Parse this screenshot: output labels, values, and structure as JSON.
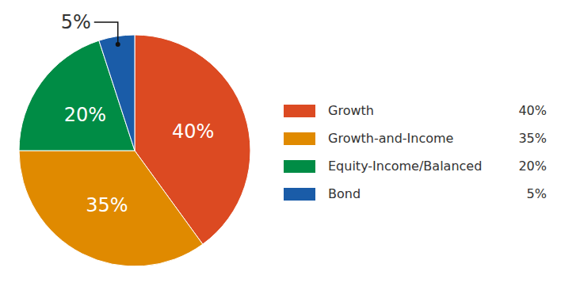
{
  "chart_data": {
    "type": "pie",
    "categories": [
      "Growth",
      "Growth-and-Income",
      "Equity-Income/Balanced",
      "Bond"
    ],
    "values": [
      40,
      35,
      20,
      5
    ],
    "value_labels": [
      "40%",
      "35%",
      "20%",
      "5%"
    ],
    "colors": [
      "#dc4a22",
      "#e08a00",
      "#008c45",
      "#1a5ca8"
    ],
    "data_labels": true,
    "legend": "right"
  }
}
